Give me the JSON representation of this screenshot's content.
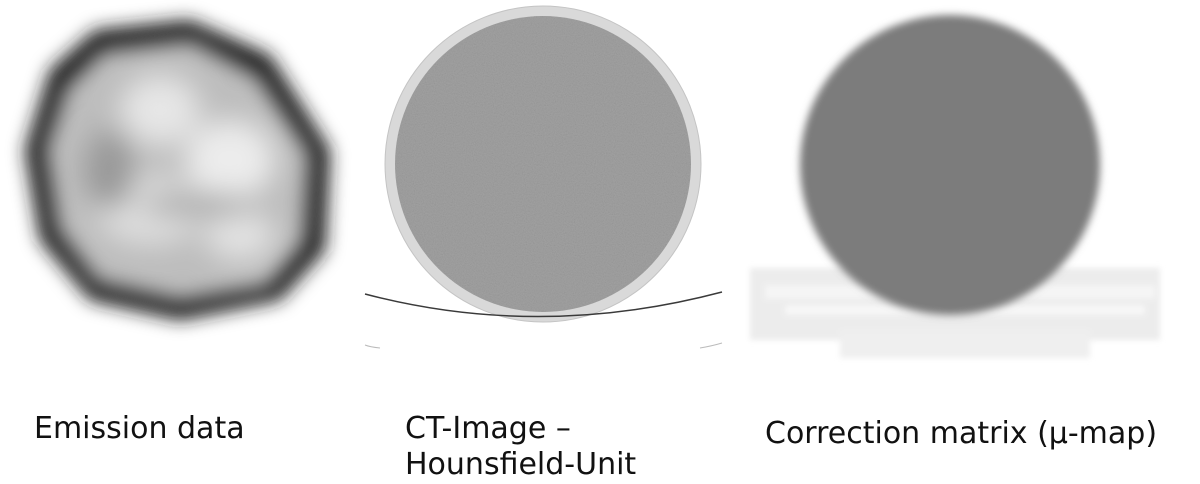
{
  "panels": [
    {
      "id": "emission",
      "caption_lines": [
        "Emission data"
      ]
    },
    {
      "id": "ct",
      "caption_lines": [
        "CT-Image –",
        "Hounsfield-Unit"
      ]
    },
    {
      "id": "mumap",
      "caption_lines": [
        "Correction matrix (μ-map)"
      ]
    }
  ]
}
